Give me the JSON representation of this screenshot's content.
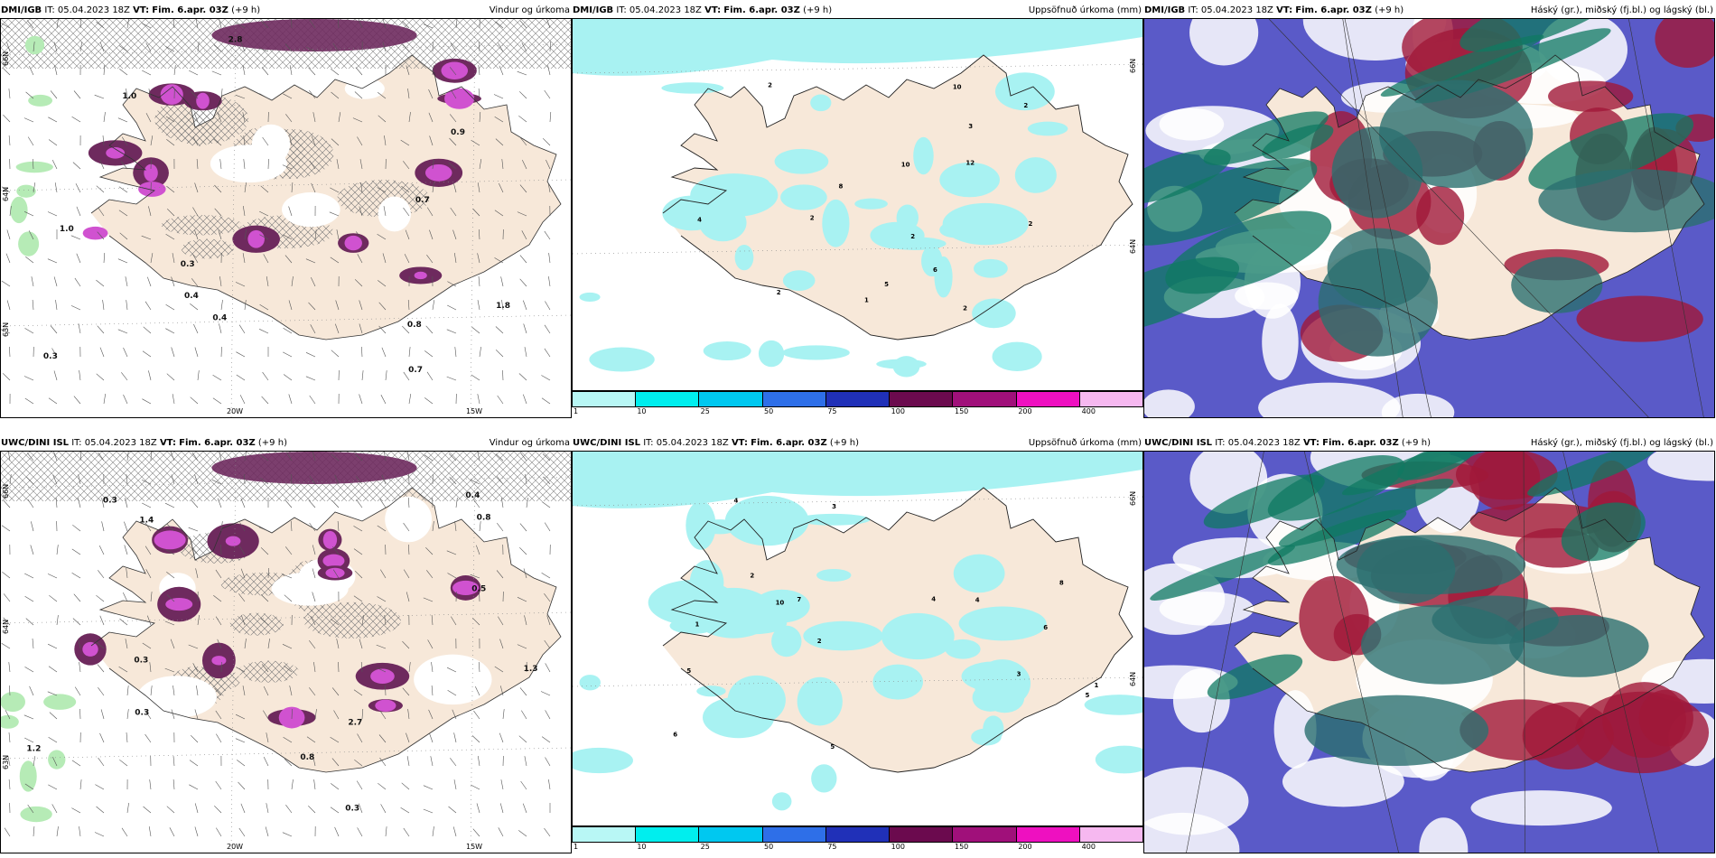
{
  "panels": [
    {
      "model": "DMI/IGB",
      "it": "IT: 05.04.2023 18Z",
      "vt_label": "VT:",
      "vt": "Fim. 6.apr. 03Z",
      "lead": "(+9 h)",
      "product": "Vindur og úrkoma",
      "lat_labels": [
        "66N",
        "64N",
        "63N"
      ],
      "lon_labels": [
        "20W",
        "15W"
      ],
      "values": [
        "0.4",
        "0.4",
        "0.7",
        "0.3",
        "0.9",
        "0.7",
        "1.0",
        "1.0",
        "2.8",
        "1.8",
        "0.8",
        "0.3"
      ]
    },
    {
      "model": "DMI/IGB",
      "it": "IT: 05.04.2023 18Z",
      "vt_label": "VT:",
      "vt": "Fim. 6.apr. 03Z",
      "lead": "(+9 h)",
      "product": "Uppsöfnuð úrkoma (mm)",
      "lat_labels": [
        "66N",
        "64N"
      ],
      "values": [
        "5",
        "2",
        "2",
        "2",
        "1",
        "6",
        "8",
        "10",
        "10",
        "2",
        "2",
        "3",
        "12",
        "2",
        "4",
        "2"
      ]
    },
    {
      "model": "DMI/IGB",
      "it": "IT: 05.04.2023 18Z",
      "vt_label": "VT:",
      "vt": "Fim. 6.apr. 03Z",
      "lead": "(+9 h)",
      "product": "Háský (gr.), miðský (fj.bl.) og lágský (bl.)"
    },
    {
      "model": "UWC/DINI ISL",
      "it": "IT: 05.04.2023 18Z",
      "vt_label": "VT:",
      "vt": "Fim. 6.apr. 03Z",
      "lead": "(+9 h)",
      "product": "Vindur og úrkoma",
      "lat_labels": [
        "66N",
        "64N",
        "63N"
      ],
      "lon_labels": [
        "20W",
        "15W"
      ],
      "values": [
        "0.3",
        "0.3",
        "0.5",
        "0.4",
        "0.3",
        "0.8",
        "0.8",
        "2.7",
        "1.4",
        "1.3",
        "1.2",
        "0.3"
      ]
    },
    {
      "model": "UWC/DINI ISL",
      "it": "IT: 05.04.2023 18Z",
      "vt_label": "VT:",
      "vt": "Fim. 6.apr. 03Z",
      "lead": "(+9 h)",
      "product": "Uppsöfnuð úrkoma (mm)",
      "lat_labels": [
        "66N",
        "64N"
      ],
      "values": [
        "4",
        "4",
        "5",
        "2",
        "4",
        "6",
        "5",
        "1",
        "7",
        "5",
        "3",
        "10",
        "6",
        "8",
        "2",
        "3",
        "1"
      ]
    },
    {
      "model": "UWC/DINI ISL",
      "it": "IT: 05.04.2023 18Z",
      "vt_label": "VT:",
      "vt": "Fim. 6.apr. 03Z",
      "lead": "(+9 h)",
      "product": "Háský (gr.), miðský (fj.bl.) og lágský (bl.)"
    }
  ],
  "colorbar": {
    "ticks": [
      "1",
      "10",
      "25",
      "50",
      "75",
      "100",
      "150",
      "200",
      "400"
    ],
    "colors": [
      "#b8f7f5",
      "#00eeee",
      "#00c8f0",
      "#2e6fe8",
      "#2030b8",
      "#6b0a4e",
      "#a0107a",
      "#ee10c0",
      "#f6b8f0"
    ]
  },
  "colors": {
    "land": "#f7e8d9",
    "sea": "#ffffff",
    "precip_light": "#a8f2f2",
    "purple_dark": "#6e2a5e",
    "magenta": "#d052d0",
    "green_light": "#b6ebb6",
    "cloud_blue": "#5a5ac8",
    "cloud_red": "#a01838",
    "cloud_green": "#0f7a62",
    "cloud_teal": "#2b6f6f"
  }
}
